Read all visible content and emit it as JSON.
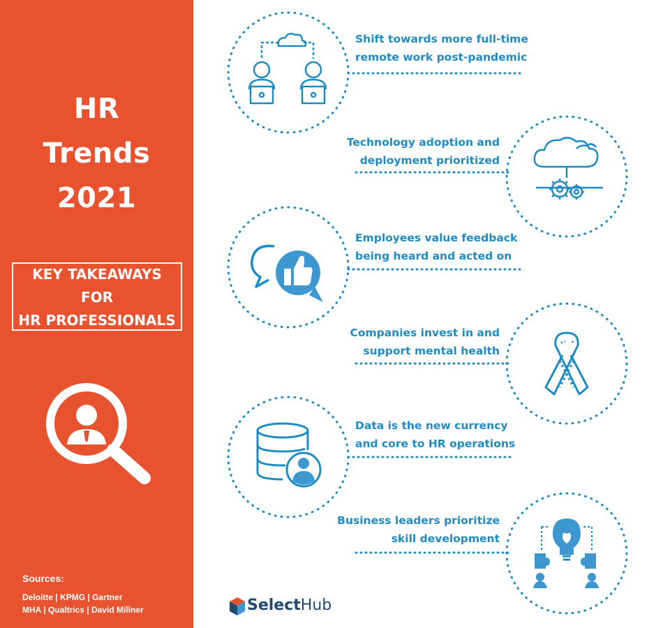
{
  "sidebar": {
    "title_lines": [
      "HR",
      "Trends",
      "2021"
    ],
    "takeaways_lines": [
      "KEY TAKEAWAYS",
      "FOR",
      "HR PROFESSIONALS"
    ],
    "search_icon": "magnifier-person-icon",
    "sources_title": "Sources:",
    "sources_lines": [
      "Deloitte | KPMG | Gartner",
      "MHA | Qualtrics |  David Millner"
    ]
  },
  "trends": [
    {
      "lines": [
        "Shift towards more full-time",
        "remote work post-pandemic"
      ],
      "icon": "remote-workers-cloud-icon"
    },
    {
      "lines": [
        "Technology adoption and",
        "deployment prioritized"
      ],
      "icon": "cloud-gears-icon"
    },
    {
      "lines": [
        "Employees value feedback",
        "being heard and acted on"
      ],
      "icon": "feedback-thumbs-up-icon"
    },
    {
      "lines": [
        "Companies invest in and",
        "support mental health"
      ],
      "icon": "awareness-ribbon-icon"
    },
    {
      "lines": [
        "Data is the new currency",
        "and core to HR operations"
      ],
      "icon": "database-user-icon"
    },
    {
      "lines": [
        "Business leaders prioritize",
        "skill development"
      ],
      "icon": "lightbulb-puzzle-team-icon"
    }
  ],
  "brand": {
    "name_bold": "Select",
    "name_light": "Hub"
  },
  "colors": {
    "sidebar": "#e8532f",
    "accent": "#1e8bc3",
    "brand_dark": "#1e4a70"
  }
}
